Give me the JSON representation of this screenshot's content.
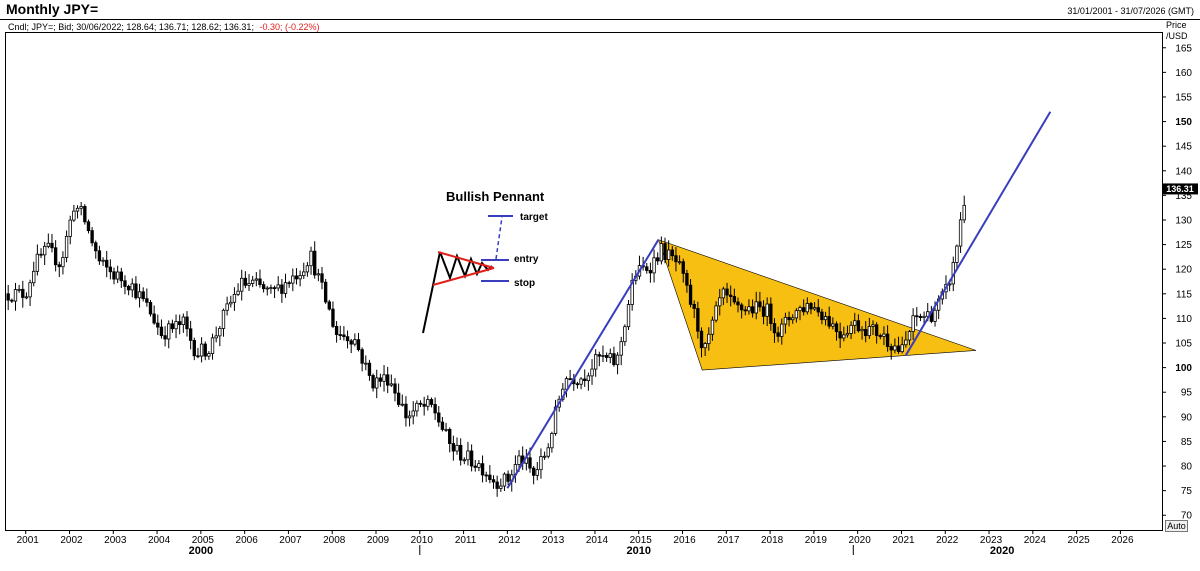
{
  "header": {
    "title": "Monthly JPY=",
    "date_range": "31/01/2001 - 31/07/2026 (GMT)",
    "info_prefix": "Cndl; JPY=; Bid; 30/06/2022; 128.64; 136.71; 128.62; 136.31;",
    "info_change": "-0.30; (-0.22%)"
  },
  "axis": {
    "price_label_line1": "Price",
    "price_label_line2": "/USD",
    "auto_button": "Auto",
    "current_price_tag": "136.31"
  },
  "colors": {
    "candle": "#000000",
    "trendline": "#3a3dbd",
    "pennant_fill": "#f7bf12",
    "pennant_red": "#e0201b",
    "price_tag_bg": "#000000"
  },
  "chart_data": {
    "type": "candlestick",
    "title": "Monthly JPY=",
    "ylabel": "Price /USD",
    "xlabel": "",
    "ylim": [
      67,
      168
    ],
    "xlim": [
      2000.55,
      2026.95
    ],
    "grid": false,
    "yticks": [
      70,
      75,
      80,
      85,
      90,
      95,
      100,
      105,
      110,
      115,
      120,
      125,
      130,
      135,
      140,
      145,
      150,
      155,
      160,
      165
    ],
    "yticks_bold": [
      100,
      150
    ],
    "xticks": [
      "2001",
      "2002",
      "2003",
      "2004",
      "2005",
      "2006",
      "2007",
      "2008",
      "2009",
      "2010",
      "2011",
      "2012",
      "2013",
      "2014",
      "2015",
      "2016",
      "2017",
      "2018",
      "2019",
      "2020",
      "2021",
      "2022",
      "2023",
      "2024",
      "2025",
      "2026"
    ],
    "xticks_major": [
      {
        "label": "2000",
        "x": 2005.0
      },
      {
        "label": "2010",
        "x": 2015.0
      },
      {
        "label": "2020",
        "x": 2023.3
      }
    ],
    "close_path": [
      [
        2001.0,
        115
      ],
      [
        2001.2,
        121
      ],
      [
        2001.5,
        124
      ],
      [
        2001.8,
        121
      ],
      [
        2002.1,
        133
      ],
      [
        2002.3,
        131
      ],
      [
        2002.7,
        121
      ],
      [
        2003.0,
        119
      ],
      [
        2003.4,
        117
      ],
      [
        2003.8,
        112
      ],
      [
        2004.1,
        107
      ],
      [
        2004.6,
        109
      ],
      [
        2004.9,
        103
      ],
      [
        2005.2,
        104
      ],
      [
        2005.5,
        110
      ],
      [
        2005.9,
        117
      ],
      [
        2006.2,
        117
      ],
      [
        2006.6,
        115
      ],
      [
        2006.9,
        117
      ],
      [
        2007.3,
        120
      ],
      [
        2007.5,
        123
      ],
      [
        2007.8,
        115
      ],
      [
        2008.1,
        107
      ],
      [
        2008.5,
        106
      ],
      [
        2008.9,
        97
      ],
      [
        2009.3,
        98
      ],
      [
        2009.7,
        90
      ],
      [
        2010.0,
        92
      ],
      [
        2010.3,
        92
      ],
      [
        2010.7,
        84
      ],
      [
        2011.0,
        82
      ],
      [
        2011.4,
        80
      ],
      [
        2011.7,
        77
      ],
      [
        2012.0,
        77
      ],
      [
        2012.3,
        82
      ],
      [
        2012.6,
        78
      ],
      [
        2012.9,
        83
      ],
      [
        2013.3,
        98
      ],
      [
        2013.7,
        98
      ],
      [
        2014.1,
        102
      ],
      [
        2014.5,
        101
      ],
      [
        2014.9,
        119
      ],
      [
        2015.3,
        121
      ],
      [
        2015.5,
        124
      ],
      [
        2015.9,
        121
      ],
      [
        2016.3,
        110
      ],
      [
        2016.5,
        103
      ],
      [
        2016.9,
        115
      ],
      [
        2017.2,
        112
      ],
      [
        2017.6,
        112
      ],
      [
        2017.9,
        112
      ],
      [
        2018.2,
        107
      ],
      [
        2018.5,
        111
      ],
      [
        2018.9,
        113
      ],
      [
        2019.2,
        111
      ],
      [
        2019.6,
        107
      ],
      [
        2019.9,
        109
      ],
      [
        2020.2,
        108
      ],
      [
        2020.5,
        107
      ],
      [
        2020.9,
        104
      ],
      [
        2021.0,
        103
      ],
      [
        2021.3,
        110
      ],
      [
        2021.7,
        111
      ],
      [
        2022.0,
        115
      ],
      [
        2022.2,
        121
      ],
      [
        2022.35,
        130
      ],
      [
        2022.5,
        136.31
      ]
    ],
    "last_candle": {
      "date": "30/06/2022",
      "open": 128.64,
      "high": 136.71,
      "low": 128.62,
      "close": 136.31
    },
    "annotations": {
      "uptrend_line": [
        [
          2012.0,
          75.5
        ],
        [
          2015.45,
          126
        ]
      ],
      "pennant_triangle": [
        [
          2015.45,
          126
        ],
        [
          2016.45,
          99.5
        ],
        [
          2022.7,
          103.5
        ]
      ],
      "breakout_line": [
        [
          2021.1,
          102.5
        ],
        [
          2024.4,
          152
        ]
      ]
    }
  },
  "inset": {
    "title": "Bullish Pennant",
    "target_label": "target",
    "entry_label": "entry",
    "stop_label": "stop"
  }
}
